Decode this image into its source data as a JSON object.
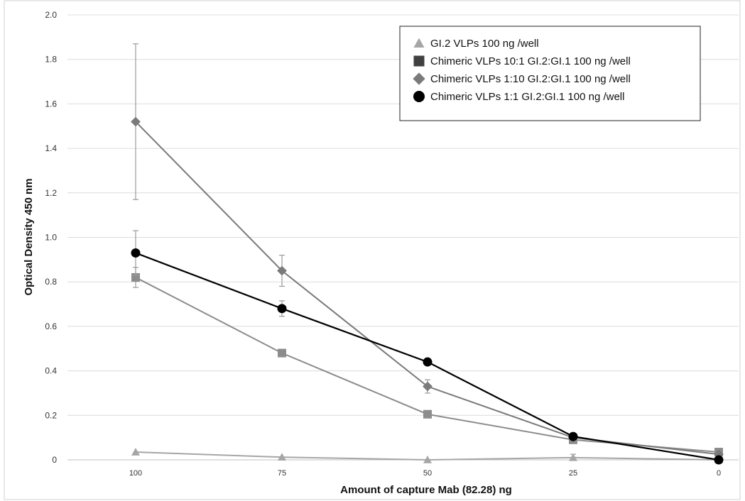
{
  "chart_data": {
    "type": "line",
    "xlabel": "Amount of capture Mab (82.28) ng",
    "ylabel": "Optical Density 450 nm",
    "categories": [
      "100",
      "75",
      "50",
      "25",
      "0"
    ],
    "ylim": [
      0,
      2.0
    ],
    "yticks": [
      "0",
      "0.2",
      "0.4",
      "0.6",
      "0.8",
      "1.0",
      "1.2",
      "1.4",
      "1.6",
      "1.8",
      "2.0"
    ],
    "grid": true,
    "legend_position": "top-right",
    "series": [
      {
        "name": "GI.2 VLPs 100 ng /well",
        "marker": "triangle",
        "color": "#a6a6a6",
        "values": [
          0.035,
          0.012,
          0.0,
          0.01,
          0.0
        ],
        "errors": [
          0,
          0,
          0,
          0.015,
          0
        ]
      },
      {
        "name": "Chimeric VLPs 10:1 GI.2:GI.1 100 ng /well",
        "marker": "square",
        "color": "#8c8c8c",
        "legend_color": "#404040",
        "values": [
          0.82,
          0.48,
          0.205,
          0.09,
          0.035
        ],
        "errors": [
          0.045,
          0,
          0,
          0,
          0
        ]
      },
      {
        "name": "Chimeric VLPs 1:10 GI.2:GI.1 100 ng /well",
        "marker": "diamond",
        "color": "#7a7a7a",
        "values": [
          1.52,
          0.85,
          0.33,
          0.1,
          0.025
        ],
        "errors": [
          0.35,
          0.07,
          0.03,
          0,
          0
        ]
      },
      {
        "name": "Chimeric VLPs 1:1 GI.2:GI.1 100 ng /well",
        "marker": "circle",
        "color": "#000000",
        "values": [
          0.93,
          0.68,
          0.44,
          0.105,
          0.0
        ],
        "errors": [
          0.1,
          0.035,
          0,
          0,
          0
        ]
      }
    ]
  }
}
